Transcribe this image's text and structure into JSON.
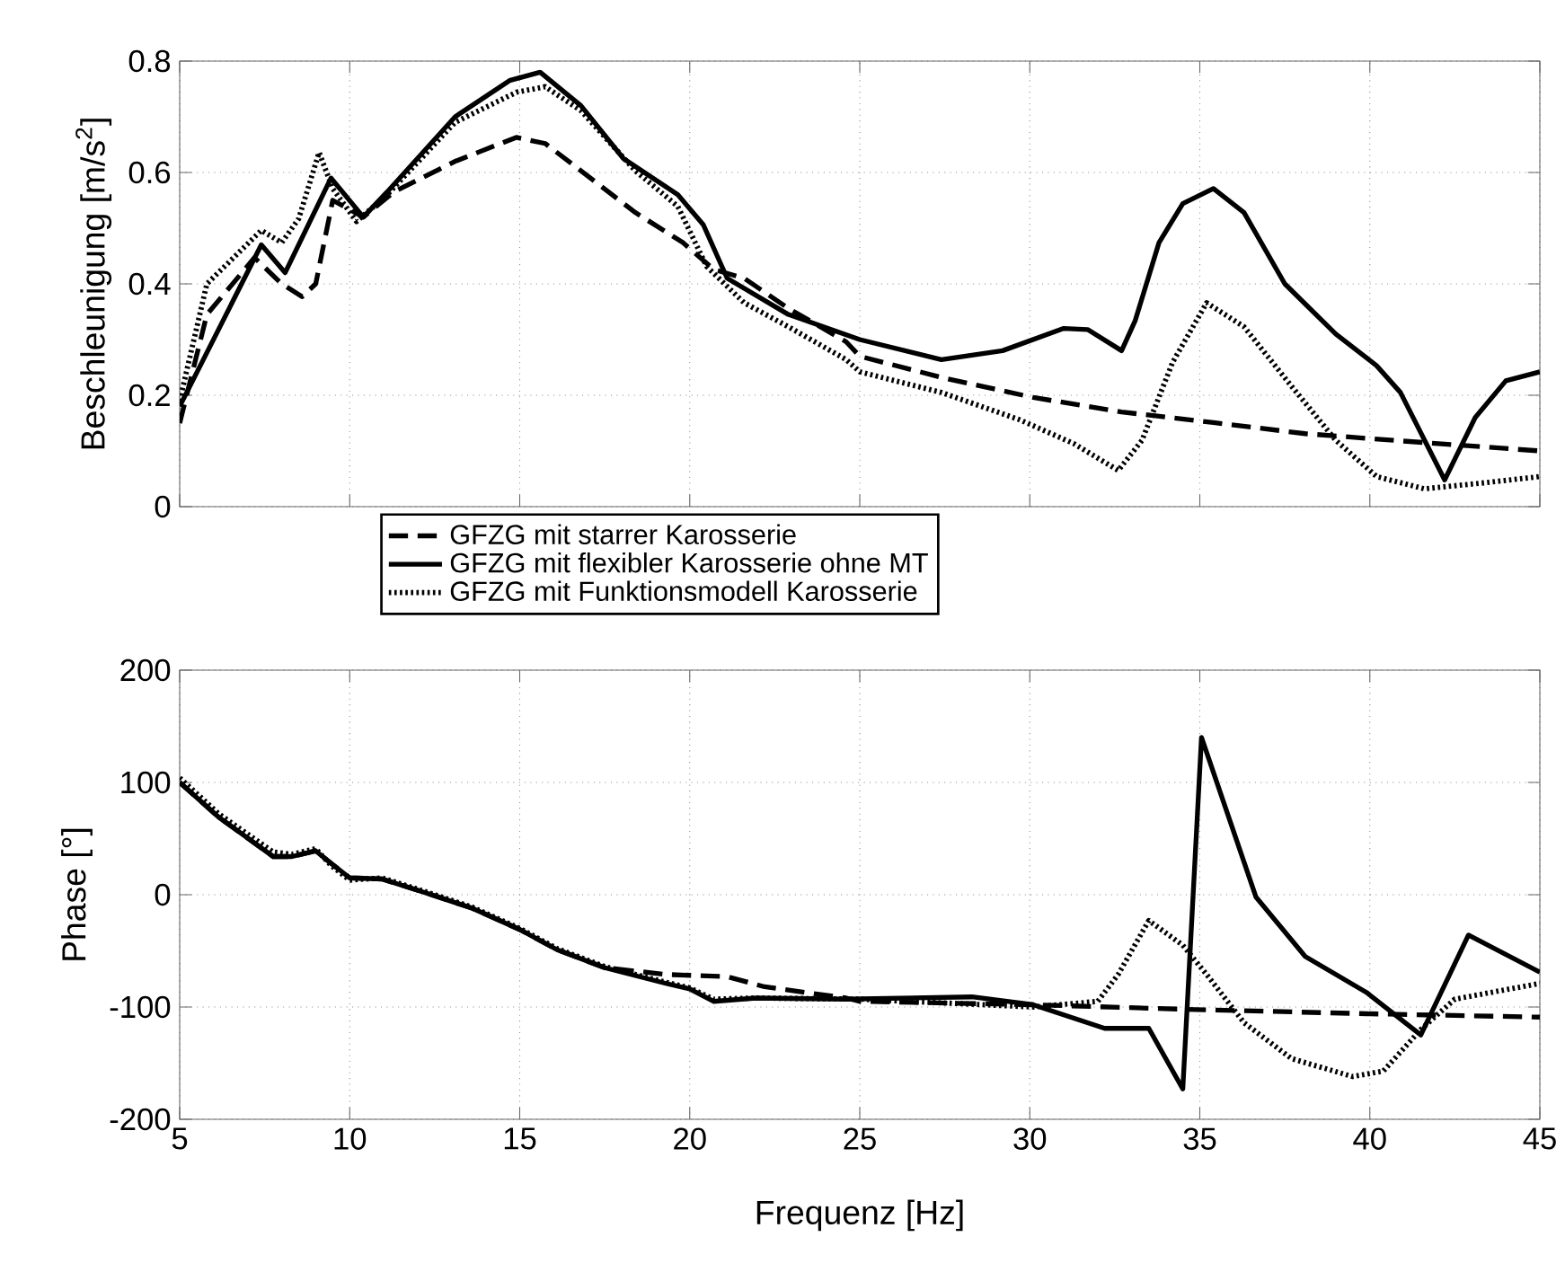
{
  "chart_data": [
    {
      "type": "line",
      "ylabel": "Beschleunigung [m/s$^{2}$]",
      "xlim": [
        5,
        45
      ],
      "xticks": [
        5,
        10,
        15,
        20,
        25,
        30,
        35,
        40,
        45
      ],
      "ylim": [
        0,
        0.8
      ],
      "yticks": [
        0,
        0.2,
        0.4,
        0.6,
        0.8
      ],
      "tick_labels": "y",
      "grid": true,
      "legend": "bottom",
      "series": [
        {
          "name": "GFZG mit starrer Karosserie",
          "color": "#000000",
          "line_style": "dashed",
          "x": [
            5,
            5.8,
            7.2,
            8,
            8.6,
            9,
            9.5,
            10.4,
            11.3,
            13.1,
            14.9,
            15.75,
            16.8,
            18.4,
            19.8,
            20.7,
            21.6,
            22.9,
            24.6,
            25,
            27.4,
            30.1,
            32.7,
            35.4,
            38.1,
            40.7,
            45
          ],
          "values": [
            0.15,
            0.345,
            0.447,
            0.4,
            0.377,
            0.4,
            0.55,
            0.52,
            0.565,
            0.62,
            0.663,
            0.652,
            0.603,
            0.528,
            0.474,
            0.426,
            0.41,
            0.356,
            0.296,
            0.27,
            0.232,
            0.196,
            0.17,
            0.151,
            0.131,
            0.119,
            0.1
          ]
        },
        {
          "name": "GFZG mit flexibler Karosserie ohne MT",
          "color": "#000000",
          "line_style": "solid",
          "x": [
            5,
            7.4,
            8.1,
            9.45,
            10.4,
            11.1,
            13.1,
            14.7,
            15.6,
            16.8,
            18.05,
            19.65,
            20.4,
            21.1,
            22.9,
            25,
            27.4,
            29.2,
            31,
            31.7,
            32.7,
            33.1,
            33.8,
            34.5,
            35.4,
            36.3,
            37.5,
            39,
            40.2,
            40.9,
            42.2,
            43.1,
            44,
            45
          ],
          "values": [
            0.18,
            0.47,
            0.42,
            0.59,
            0.52,
            0.565,
            0.7,
            0.765,
            0.78,
            0.72,
            0.625,
            0.56,
            0.506,
            0.41,
            0.345,
            0.3,
            0.264,
            0.28,
            0.32,
            0.318,
            0.28,
            0.334,
            0.474,
            0.544,
            0.571,
            0.528,
            0.4,
            0.31,
            0.253,
            0.205,
            0.048,
            0.16,
            0.226,
            0.242
          ]
        },
        {
          "name": "GFZG mit Funktionsmodell Karosserie",
          "color": "#000000",
          "line_style": "dotted",
          "x": [
            5,
            5.8,
            7.4,
            8,
            8.5,
            9.1,
            9.5,
            10.2,
            11.1,
            13.1,
            14.9,
            15.75,
            16.8,
            18.4,
            19.65,
            20.5,
            21.6,
            22.9,
            24.6,
            25,
            27.4,
            29.7,
            31.3,
            32.6,
            33.3,
            34.2,
            35.2,
            36.3,
            37.7,
            39,
            40.2,
            41.6,
            43.4,
            45
          ],
          "values": [
            0.19,
            0.4,
            0.496,
            0.474,
            0.517,
            0.636,
            0.571,
            0.512,
            0.56,
            0.69,
            0.744,
            0.754,
            0.711,
            0.603,
            0.539,
            0.431,
            0.366,
            0.323,
            0.264,
            0.242,
            0.205,
            0.156,
            0.113,
            0.065,
            0.119,
            0.259,
            0.366,
            0.323,
            0.216,
            0.119,
            0.054,
            0.032,
            0.043,
            0.054
          ]
        }
      ]
    },
    {
      "type": "line",
      "xlabel": "Frequenz [Hz]",
      "ylabel": "Phase [°]",
      "xlim": [
        5,
        45
      ],
      "xticks": [
        5,
        10,
        15,
        20,
        25,
        30,
        35,
        40,
        45
      ],
      "ylim": [
        -200,
        200
      ],
      "yticks": [
        -200,
        -100,
        0,
        100,
        200
      ],
      "grid": true,
      "series": [
        {
          "color": "#000000",
          "line_style": "dashed",
          "x": [
            5,
            6.15,
            7.75,
            8.3,
            9,
            9.45,
            10,
            10.95,
            12.2,
            13.6,
            15,
            16.1,
            17.5,
            19.3,
            21.1,
            22.2,
            24.6,
            25,
            30.1,
            34.5,
            39.9,
            45
          ],
          "values": [
            100,
            69,
            34,
            34,
            39,
            28,
            15,
            14,
            2,
            -12,
            -31,
            -49,
            -65,
            -71,
            -73,
            -82,
            -92,
            -95,
            -98,
            -102,
            -106,
            -109
          ]
        },
        {
          "color": "#000000",
          "line_style": "solid",
          "x": [
            5,
            6.15,
            7.75,
            8.3,
            9,
            9.45,
            10,
            10.95,
            12.2,
            13.6,
            15,
            16.1,
            17.5,
            19.3,
            20,
            20.7,
            21.95,
            24.6,
            28.3,
            30.1,
            32.2,
            33.5,
            34.5,
            35.05,
            36.65,
            38.1,
            39.9,
            41.5,
            42.9,
            45
          ],
          "values": [
            100,
            69,
            34,
            34,
            39,
            28,
            15,
            14,
            2,
            -12,
            -31,
            -49,
            -65,
            -79,
            -84,
            -95,
            -92,
            -93,
            -91,
            -98,
            -119,
            -119,
            -173,
            140,
            -2,
            -55,
            -87,
            -125,
            -36,
            -69
          ]
        },
        {
          "color": "#000000",
          "line_style": "dotted",
          "x": [
            5,
            6.15,
            7.75,
            8.3,
            9,
            9.45,
            10,
            10.95,
            12.2,
            13.6,
            15,
            16.1,
            17.5,
            19.3,
            20,
            20.7,
            21.95,
            25,
            30.1,
            32,
            32.6,
            33.5,
            34.5,
            35.2,
            36.3,
            37.7,
            39.5,
            40.4,
            41.5,
            42.5,
            45
          ],
          "values": [
            104,
            72,
            38,
            36,
            41,
            26,
            13,
            15,
            3,
            -11,
            -30,
            -48,
            -64,
            -78,
            -83,
            -93,
            -92,
            -93,
            -100,
            -95,
            -71,
            -23,
            -45,
            -71,
            -114,
            -146,
            -162,
            -157,
            -120,
            -93,
            -79
          ]
        }
      ]
    }
  ]
}
